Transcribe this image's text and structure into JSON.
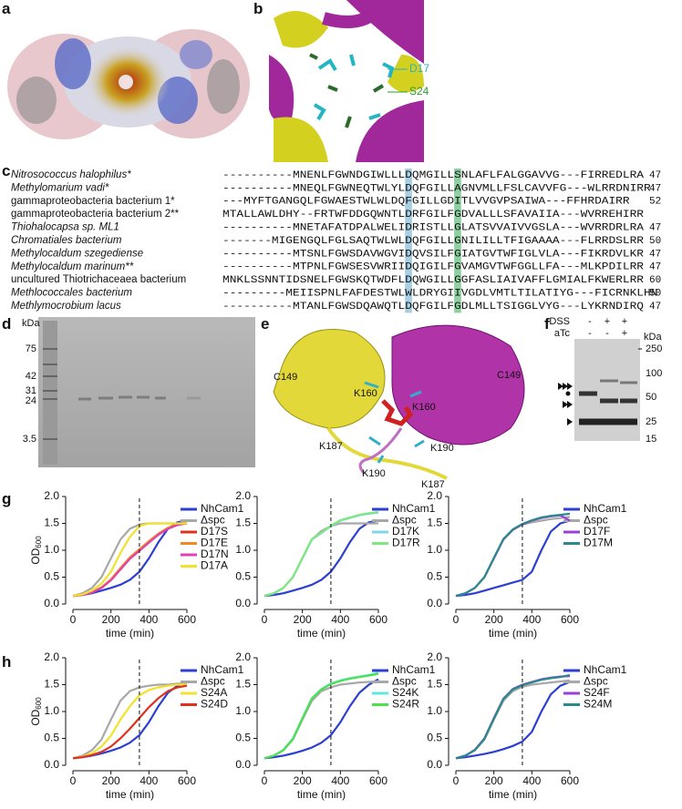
{
  "panel_labels": [
    "a",
    "b",
    "c",
    "d",
    "e",
    "f",
    "g",
    "h"
  ],
  "panel_b": {
    "labels": [
      "D17",
      "S24"
    ]
  },
  "alignment": {
    "rows": [
      {
        "name": "Nitrosococcus halophilus*",
        "sequence": "----------MNENLFGWNDGIWLLLDQMGILLSNLAFLFALGGAVVG---FIRREDLRA",
        "length": 47
      },
      {
        "name": "Methylomarium vadi*",
        "sequence": "----------MNEQLFGWNEQTWLYLDQFGILLAGNVMLLFSLCAVVFG---WLRRDNIRR",
        "length": 47
      },
      {
        "name": "gammaproteobacteria bacterium 1*",
        "sequence": "---MYFTGANGQLFGWAESTWLWLDQFGILLGDITLVVGVPSAIWA---FFHRDAIRR",
        "length": 52
      },
      {
        "name": "gammaproteobacteria bacterium 2**",
        "sequence": "MTALLAWLDHY--FRTWFDDGQWNTLDRFGILFGDVALLLSFAVAIIA---WVRREHIRR"
      },
      {
        "name": "Thiohalocapsa sp. ML1",
        "sequence": "----------MNETAFATDPALWELIDRISTLLGLATSVVAIVVGSLA---WVRRDRLRA",
        "length": 47
      },
      {
        "name": "Chromatiales bacterium",
        "sequence": "-------MIGENGQLFGLSAQTWLWLDQFGILLGNILILLTFIGAAAA---FLRRDSLRR",
        "length": 50
      },
      {
        "name": "Methylocaldum szegediense",
        "sequence": "----------MTSNLFGWSDAVWGVIDQVSILFGIATGVTWFIGLVLA---FIKRDVLKR",
        "length": 47
      },
      {
        "name": "Methylocaldum marinum**",
        "sequence": "----------MTPNLFGWSESVWRIIDQIGILFGVAMGVTWFGGLLFA---MLKPDILRR",
        "length": 47
      },
      {
        "name": "uncultured Thiotrichaceaea bacterium",
        "sequence": "MNKLSSNNTIDSNELFGWSKQTWDFLDQWGILLGGFASLIAIVAFFLGMIALFKWERLRR",
        "length": 60
      },
      {
        "name": "Methlococcales bacterium",
        "sequence": "---------MEIISPNLFAFDESTWLWLDRYGIIVGDLVMTLTILATIYG---FICRNKLHN",
        "length": 50
      },
      {
        "name": "Methlymocrobium lacus",
        "sequence": "----------MTANLFGWSDQAWQTLDQFGILFGDLMLLTSIGGLVYG---LYKRNDIRQ",
        "length": 47
      }
    ]
  },
  "panel_d": {
    "unit": "kDa",
    "markers": [
      75,
      42,
      31,
      24,
      3.5
    ]
  },
  "panel_e": {
    "labels": [
      "C149",
      "C149",
      "K160",
      "K160",
      "K187",
      "K190",
      "K190",
      "K187"
    ]
  },
  "panel_f": {
    "rows": [
      {
        "label": "DSS",
        "lanes": [
          "-",
          "+",
          "+"
        ]
      },
      {
        "label": "aTc",
        "lanes": [
          "-",
          "-",
          "+"
        ]
      }
    ],
    "unit": "kDa",
    "markers": [
      250,
      100,
      50,
      25,
      15
    ]
  },
  "chart_data": [
    {
      "type": "line",
      "x_label": "time (min)",
      "y_label": "OD",
      "y_label_subscript": "600",
      "x": [
        0,
        50,
        100,
        150,
        200,
        250,
        300,
        350,
        400,
        450,
        500,
        550,
        600
      ],
      "xlim": [
        0,
        600
      ],
      "ylim": [
        0,
        2
      ],
      "xticks": [
        0,
        200,
        400,
        600
      ],
      "yticks": [
        {
          "value": 0,
          "label": "0.0"
        },
        {
          "value": 0.5,
          "label": "0.5"
        },
        {
          "value": 1,
          "label": "1.0"
        },
        {
          "value": 1.5,
          "label": "1.5"
        },
        {
          "value": 2,
          "label": "2.0"
        }
      ],
      "reference_line": 350,
      "series": [
        {
          "name": "NhCam1",
          "color": "#2b3fd1",
          "values": [
            0.15,
            0.17,
            0.2,
            0.25,
            0.3,
            0.36,
            0.45,
            0.6,
            0.85,
            1.15,
            1.4,
            1.52,
            1.55
          ]
        },
        {
          "name": "Δspc",
          "color": "#a8a8a8",
          "values": [
            0.15,
            0.2,
            0.3,
            0.5,
            0.85,
            1.2,
            1.4,
            1.48,
            1.5,
            1.5,
            1.5,
            1.5,
            1.5
          ]
        },
        {
          "name": "D17S",
          "color": "#e0301e",
          "values": [
            0.15,
            0.17,
            0.22,
            0.3,
            0.45,
            0.65,
            0.85,
            1.0,
            1.15,
            1.3,
            1.4,
            1.48,
            1.5
          ]
        },
        {
          "name": "D17E",
          "color": "#f08a24",
          "values": [
            0.15,
            0.17,
            0.22,
            0.31,
            0.46,
            0.67,
            0.87,
            1.02,
            1.17,
            1.31,
            1.42,
            1.49,
            1.51
          ]
        },
        {
          "name": "D17N",
          "color": "#e040b0",
          "values": [
            0.15,
            0.17,
            0.21,
            0.3,
            0.44,
            0.64,
            0.84,
            0.99,
            1.14,
            1.29,
            1.4,
            1.47,
            1.5
          ]
        },
        {
          "name": "D17A",
          "color": "#f2e22c",
          "values": [
            0.15,
            0.18,
            0.25,
            0.38,
            0.6,
            0.95,
            1.25,
            1.45,
            1.5,
            1.5,
            1.5,
            1.5,
            1.5
          ]
        }
      ]
    },
    {
      "type": "line",
      "x_label": "time (min)",
      "x": [
        0,
        50,
        100,
        150,
        200,
        250,
        300,
        350,
        400,
        450,
        500,
        550,
        600
      ],
      "xlim": [
        0,
        600
      ],
      "ylim": [
        0,
        2
      ],
      "xticks": [
        0,
        200,
        400,
        600
      ],
      "yticks": [
        {
          "value": 0,
          "label": "0.0"
        },
        {
          "value": 0.5,
          "label": "0.5"
        },
        {
          "value": 1,
          "label": "1.0"
        },
        {
          "value": 1.5,
          "label": "1.5"
        },
        {
          "value": 2,
          "label": "2.0"
        }
      ],
      "reference_line": 350,
      "series": [
        {
          "name": "NhCam1",
          "color": "#2b3fd1",
          "values": [
            0.15,
            0.17,
            0.2,
            0.25,
            0.3,
            0.36,
            0.45,
            0.6,
            0.85,
            1.15,
            1.4,
            1.52,
            1.55
          ]
        },
        {
          "name": "Δspc",
          "color": "#a8a8a8",
          "values": [
            0.15,
            0.2,
            0.3,
            0.5,
            0.85,
            1.2,
            1.36,
            1.45,
            1.5,
            1.5,
            1.5,
            1.5,
            1.5
          ]
        },
        {
          "name": "D17K",
          "color": "#7fd6e8",
          "values": [
            0.15,
            0.2,
            0.3,
            0.5,
            0.85,
            1.2,
            1.32,
            1.45,
            1.55,
            1.6,
            1.65,
            1.68,
            1.7
          ]
        },
        {
          "name": "D17R",
          "color": "#7de87d",
          "values": [
            0.15,
            0.2,
            0.3,
            0.5,
            0.86,
            1.21,
            1.33,
            1.46,
            1.56,
            1.61,
            1.66,
            1.69,
            1.71
          ]
        }
      ]
    },
    {
      "type": "line",
      "x_label": "time (min)",
      "x": [
        0,
        50,
        100,
        150,
        200,
        250,
        300,
        350,
        400,
        450,
        500,
        550,
        600
      ],
      "xlim": [
        0,
        600
      ],
      "ylim": [
        0,
        2
      ],
      "xticks": [
        0,
        200,
        400,
        600
      ],
      "yticks": [
        {
          "value": 0,
          "label": "0.0"
        },
        {
          "value": 0.5,
          "label": "0.5"
        },
        {
          "value": 1,
          "label": "1.0"
        },
        {
          "value": 1.5,
          "label": "1.5"
        },
        {
          "value": 2,
          "label": "2.0"
        }
      ],
      "reference_line": 350,
      "series": [
        {
          "name": "NhCam1",
          "color": "#2b3fd1",
          "values": [
            0.15,
            0.17,
            0.2,
            0.25,
            0.3,
            0.35,
            0.4,
            0.45,
            0.6,
            1.0,
            1.35,
            1.5,
            1.55
          ]
        },
        {
          "name": "Δspc",
          "color": "#a8a8a8",
          "values": [
            0.15,
            0.2,
            0.3,
            0.5,
            0.85,
            1.2,
            1.38,
            1.48,
            1.52,
            1.55,
            1.58,
            1.6,
            1.62
          ]
        },
        {
          "name": "D17F",
          "color": "#9b3fd6",
          "values": [
            0.15,
            0.2,
            0.3,
            0.5,
            0.85,
            1.2,
            1.38,
            1.48,
            1.55,
            1.6,
            1.63,
            1.65,
            1.55
          ]
        },
        {
          "name": "D17M",
          "color": "#2a8a8a",
          "values": [
            0.15,
            0.2,
            0.3,
            0.5,
            0.86,
            1.21,
            1.39,
            1.49,
            1.56,
            1.61,
            1.64,
            1.66,
            1.68
          ]
        }
      ]
    },
    {
      "type": "line",
      "x_label": "time (min)",
      "y_label": "OD",
      "y_label_subscript": "600",
      "x": [
        0,
        50,
        100,
        150,
        200,
        250,
        300,
        350,
        400,
        450,
        500,
        550,
        600
      ],
      "xlim": [
        0,
        600
      ],
      "ylim": [
        0,
        2
      ],
      "xticks": [
        0,
        200,
        400,
        600
      ],
      "yticks": [
        {
          "value": 0,
          "label": "0.0"
        },
        {
          "value": 0.5,
          "label": "0.5"
        },
        {
          "value": 1,
          "label": "1.0"
        },
        {
          "value": 1.5,
          "label": "1.5"
        },
        {
          "value": 2,
          "label": "2.0"
        }
      ],
      "reference_line": 350,
      "series": [
        {
          "name": "NhCam1",
          "color": "#2b3fd1",
          "values": [
            0.13,
            0.15,
            0.18,
            0.22,
            0.27,
            0.33,
            0.42,
            0.56,
            0.8,
            1.1,
            1.35,
            1.48,
            1.55
          ]
        },
        {
          "name": "Δspc",
          "color": "#a8a8a8",
          "values": [
            0.13,
            0.18,
            0.28,
            0.48,
            0.85,
            1.2,
            1.38,
            1.45,
            1.48,
            1.5,
            1.5,
            1.52,
            1.52
          ]
        },
        {
          "name": "S24A",
          "color": "#f2e22c",
          "values": [
            0.13,
            0.16,
            0.22,
            0.35,
            0.55,
            0.85,
            1.1,
            1.3,
            1.4,
            1.45,
            1.48,
            1.5,
            1.5
          ]
        },
        {
          "name": "S24D",
          "color": "#e0301e",
          "values": [
            0.13,
            0.15,
            0.19,
            0.25,
            0.35,
            0.5,
            0.68,
            0.88,
            1.08,
            1.25,
            1.38,
            1.45,
            1.48
          ]
        }
      ]
    },
    {
      "type": "line",
      "x_label": "time (min)",
      "x": [
        0,
        50,
        100,
        150,
        200,
        250,
        300,
        350,
        400,
        450,
        500,
        550,
        600
      ],
      "xlim": [
        0,
        600
      ],
      "ylim": [
        0,
        2
      ],
      "xticks": [
        0,
        200,
        400,
        600
      ],
      "yticks": [
        {
          "value": 0,
          "label": "0.0"
        },
        {
          "value": 0.5,
          "label": "0.5"
        },
        {
          "value": 1,
          "label": "1.0"
        },
        {
          "value": 1.5,
          "label": "1.5"
        },
        {
          "value": 2,
          "label": "2.0"
        }
      ],
      "reference_line": 350,
      "series": [
        {
          "name": "NhCam1",
          "color": "#2b3fd1",
          "values": [
            0.13,
            0.15,
            0.18,
            0.22,
            0.27,
            0.33,
            0.42,
            0.56,
            0.8,
            1.1,
            1.35,
            1.5,
            1.6
          ]
        },
        {
          "name": "Δspc",
          "color": "#a8a8a8",
          "values": [
            0.13,
            0.18,
            0.28,
            0.48,
            0.85,
            1.2,
            1.38,
            1.45,
            1.5,
            1.52,
            1.54,
            1.55,
            1.56
          ]
        },
        {
          "name": "S24K",
          "color": "#5ee8e0",
          "values": [
            0.13,
            0.18,
            0.29,
            0.5,
            0.88,
            1.25,
            1.42,
            1.52,
            1.58,
            1.62,
            1.65,
            1.68,
            1.72
          ]
        },
        {
          "name": "S24R",
          "color": "#4ee04e",
          "values": [
            0.13,
            0.18,
            0.28,
            0.49,
            0.87,
            1.24,
            1.41,
            1.51,
            1.57,
            1.61,
            1.64,
            1.67,
            1.7
          ]
        }
      ]
    },
    {
      "type": "line",
      "x_label": "time (min)",
      "x": [
        0,
        50,
        100,
        150,
        200,
        250,
        300,
        350,
        400,
        450,
        500,
        550,
        600
      ],
      "xlim": [
        0,
        600
      ],
      "ylim": [
        0,
        2
      ],
      "xticks": [
        0,
        200,
        400,
        600
      ],
      "yticks": [
        {
          "value": 0,
          "label": "0.0"
        },
        {
          "value": 0.5,
          "label": "0.5"
        },
        {
          "value": 1,
          "label": "1.0"
        },
        {
          "value": 1.5,
          "label": "1.5"
        },
        {
          "value": 2,
          "label": "2.0"
        }
      ],
      "reference_line": 350,
      "series": [
        {
          "name": "NhCam1",
          "color": "#2b3fd1",
          "values": [
            0.13,
            0.15,
            0.18,
            0.21,
            0.25,
            0.3,
            0.36,
            0.44,
            0.62,
            1.0,
            1.32,
            1.48,
            1.55
          ]
        },
        {
          "name": "Δspc",
          "color": "#a8a8a8",
          "values": [
            0.13,
            0.18,
            0.28,
            0.48,
            0.85,
            1.2,
            1.38,
            1.46,
            1.5,
            1.52,
            1.54,
            1.56,
            1.58
          ]
        },
        {
          "name": "S24F",
          "color": "#9b3fd6",
          "values": [
            0.13,
            0.18,
            0.29,
            0.5,
            0.88,
            1.24,
            1.42,
            1.5,
            1.55,
            1.6,
            1.63,
            1.65,
            1.66
          ]
        },
        {
          "name": "S24M",
          "color": "#2a8a8a",
          "values": [
            0.13,
            0.18,
            0.28,
            0.49,
            0.87,
            1.23,
            1.41,
            1.49,
            1.54,
            1.59,
            1.62,
            1.64,
            1.68
          ]
        }
      ]
    }
  ]
}
